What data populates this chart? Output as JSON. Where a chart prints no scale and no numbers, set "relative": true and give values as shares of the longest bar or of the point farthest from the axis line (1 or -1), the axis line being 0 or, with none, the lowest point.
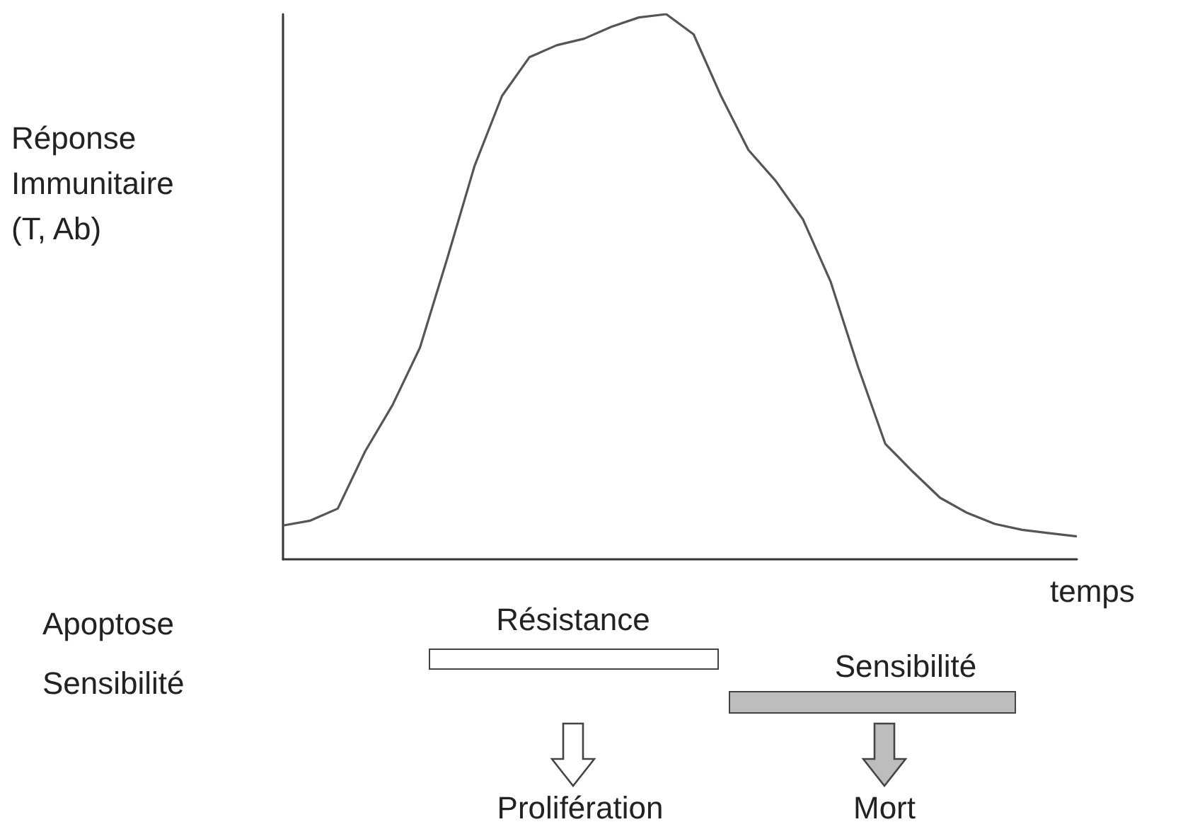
{
  "chart_data": {
    "type": "line",
    "relative": true,
    "marker": "none",
    "xlabel": "temps",
    "ylabel": "Réponse Immunitaire (T, Ab)",
    "categories": [
      null,
      null,
      null,
      null,
      null,
      null,
      null,
      null,
      null,
      null,
      null,
      null,
      null,
      null,
      null,
      null,
      null,
      null,
      null,
      null,
      null,
      null,
      null,
      null,
      null,
      null,
      null,
      null,
      null,
      null
    ],
    "series": [
      {
        "color": "#555555",
        "values": [
          0.062,
          0.071,
          0.093,
          0.198,
          0.283,
          0.388,
          0.552,
          0.722,
          0.85,
          0.921,
          0.943,
          0.955,
          0.977,
          0.994,
          1,
          0.963,
          0.85,
          0.751,
          0.694,
          0.623,
          0.51,
          0.354,
          0.212,
          0.161,
          0.113,
          0.085,
          0.065,
          0.054,
          0.048,
          0.042
        ]
      }
    ],
    "annotations": [
      "Apoptose",
      "Sensibilité",
      "Résistance",
      "Sensibilité",
      "Prolifération",
      "Mort"
    ]
  }
}
